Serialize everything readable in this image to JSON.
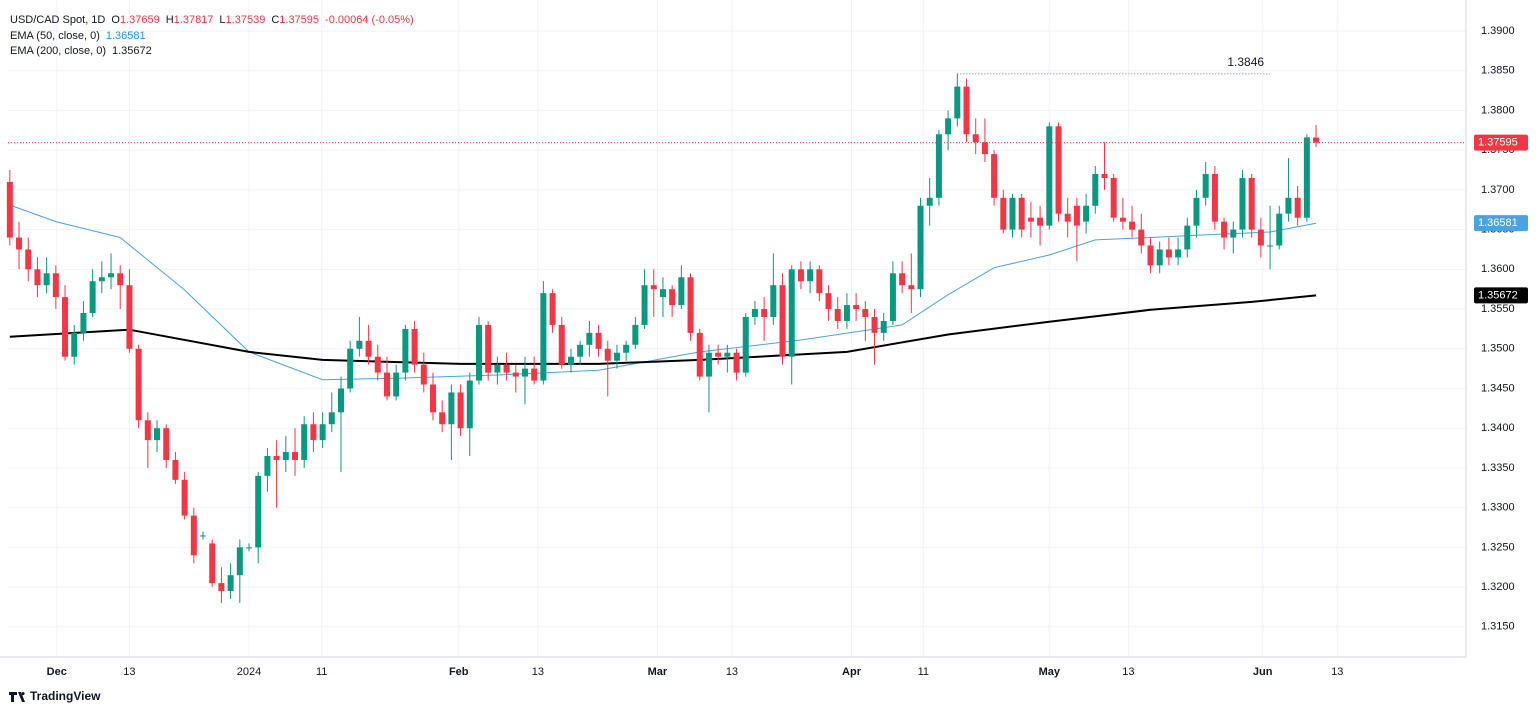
{
  "chart_data": {
    "type": "candlestick",
    "header": {
      "symbol": "USD/CAD Spot, 1D",
      "labels": [
        "O",
        "H",
        "L",
        "C"
      ],
      "change": "-0.00064 (-0.05%)"
    },
    "brand": "TradingView",
    "up_color": "#089981",
    "down_color": "#f23645",
    "grid": true,
    "xlim": [
      -0.2,
      158.3
    ],
    "ylim": [
      1.3112,
      1.3939
    ],
    "xticks": [
      {
        "value": 5.1,
        "label": "Dec"
      },
      {
        "value": 13,
        "label": "13"
      },
      {
        "value": 26,
        "label": "2024"
      },
      {
        "value": 33.9,
        "label": "11"
      },
      {
        "value": 48.8,
        "label": "Feb"
      },
      {
        "value": 57.4,
        "label": "13"
      },
      {
        "value": 70.4,
        "label": "Mar"
      },
      {
        "value": 78.5,
        "label": "13"
      },
      {
        "value": 91.5,
        "label": "Apr"
      },
      {
        "value": 99.3,
        "label": "11"
      },
      {
        "value": 113,
        "label": "May"
      },
      {
        "value": 121.6,
        "label": "13"
      },
      {
        "value": 136.2,
        "label": "Jun"
      },
      {
        "value": 144.3,
        "label": "13"
      }
    ],
    "yticks": [
      {
        "value": 1.315,
        "label": "1.3150"
      },
      {
        "value": 1.32,
        "label": "1.3200"
      },
      {
        "value": 1.325,
        "label": "1.3250"
      },
      {
        "value": 1.33,
        "label": "1.3300"
      },
      {
        "value": 1.335,
        "label": "1.3350"
      },
      {
        "value": 1.34,
        "label": "1.3400"
      },
      {
        "value": 1.345,
        "label": "1.3450"
      },
      {
        "value": 1.35,
        "label": "1.3500"
      },
      {
        "value": 1.355,
        "label": "1.3550"
      },
      {
        "value": 1.36,
        "label": "1.3600"
      },
      {
        "value": 1.365,
        "label": "1.3650"
      },
      {
        "value": 1.37,
        "label": "1.3700"
      },
      {
        "value": 1.375,
        "label": "1.3750"
      },
      {
        "value": 1.38,
        "label": "1.3800"
      },
      {
        "value": 1.385,
        "label": "1.3850"
      },
      {
        "value": 1.39,
        "label": "1.3900"
      }
    ],
    "ohlc": [
      [
        1.371,
        1.3725,
        1.363,
        1.364
      ],
      [
        1.364,
        1.366,
        1.36,
        1.3625
      ],
      [
        1.3625,
        1.364,
        1.3585,
        1.36
      ],
      [
        1.36,
        1.3615,
        1.3565,
        1.358
      ],
      [
        1.358,
        1.3615,
        1.357,
        1.3595
      ],
      [
        1.3595,
        1.3605,
        1.355,
        1.3565
      ],
      [
        1.3565,
        1.358,
        1.3485,
        1.349
      ],
      [
        1.349,
        1.353,
        1.348,
        1.352
      ],
      [
        1.352,
        1.356,
        1.351,
        1.3545
      ],
      [
        1.3545,
        1.36,
        1.354,
        1.3585
      ],
      [
        1.3585,
        1.361,
        1.357,
        1.359
      ],
      [
        1.359,
        1.362,
        1.3575,
        1.3595
      ],
      [
        1.3595,
        1.3605,
        1.355,
        1.358
      ],
      [
        1.358,
        1.36,
        1.3495,
        1.35
      ],
      [
        1.35,
        1.3505,
        1.34,
        1.341
      ],
      [
        1.341,
        1.342,
        1.335,
        1.3385
      ],
      [
        1.3385,
        1.341,
        1.337,
        1.34
      ],
      [
        1.34,
        1.3405,
        1.335,
        1.336
      ],
      [
        1.336,
        1.337,
        1.333,
        1.3335
      ],
      [
        1.3335,
        1.3345,
        1.3285,
        1.329
      ],
      [
        1.329,
        1.33,
        1.323,
        1.324
      ],
      [
        1.3265,
        1.327,
        1.326,
        1.3265
      ],
      [
        1.3255,
        1.326,
        1.32,
        1.3205
      ],
      [
        1.3205,
        1.3225,
        1.318,
        1.3195
      ],
      [
        1.3195,
        1.323,
        1.3185,
        1.3215
      ],
      [
        1.3215,
        1.326,
        1.318,
        1.325
      ],
      [
        1.325,
        1.3255,
        1.3245,
        1.325
      ],
      [
        1.325,
        1.3345,
        1.323,
        1.334
      ],
      [
        1.334,
        1.3375,
        1.332,
        1.3365
      ],
      [
        1.3365,
        1.3385,
        1.33,
        1.336
      ],
      [
        1.336,
        1.339,
        1.3345,
        1.337
      ],
      [
        1.337,
        1.34,
        1.334,
        1.336
      ],
      [
        1.336,
        1.3415,
        1.335,
        1.3405
      ],
      [
        1.3405,
        1.342,
        1.337,
        1.3385
      ],
      [
        1.3385,
        1.342,
        1.3375,
        1.3405
      ],
      [
        1.3405,
        1.3445,
        1.3395,
        1.342
      ],
      [
        1.342,
        1.3465,
        1.3345,
        1.345
      ],
      [
        1.345,
        1.351,
        1.3445,
        1.35
      ],
      [
        1.35,
        1.354,
        1.349,
        1.351
      ],
      [
        1.351,
        1.353,
        1.348,
        1.349
      ],
      [
        1.349,
        1.3505,
        1.346,
        1.347
      ],
      [
        1.347,
        1.349,
        1.3435,
        1.344
      ],
      [
        1.344,
        1.348,
        1.3435,
        1.347
      ],
      [
        1.347,
        1.353,
        1.346,
        1.3525
      ],
      [
        1.3525,
        1.3535,
        1.347,
        1.348
      ],
      [
        1.348,
        1.3495,
        1.3445,
        1.3455
      ],
      [
        1.3455,
        1.347,
        1.341,
        1.342
      ],
      [
        1.342,
        1.3435,
        1.3395,
        1.3405
      ],
      [
        1.3405,
        1.3455,
        1.336,
        1.3445
      ],
      [
        1.3445,
        1.3455,
        1.339,
        1.34
      ],
      [
        1.34,
        1.347,
        1.3365,
        1.346
      ],
      [
        1.346,
        1.354,
        1.3455,
        1.353
      ],
      [
        1.353,
        1.3535,
        1.346,
        1.347
      ],
      [
        1.347,
        1.349,
        1.3455,
        1.348
      ],
      [
        1.348,
        1.3495,
        1.346,
        1.347
      ],
      [
        1.347,
        1.348,
        1.3445,
        1.3465
      ],
      [
        1.3465,
        1.349,
        1.343,
        1.3475
      ],
      [
        1.3475,
        1.349,
        1.3455,
        1.346
      ],
      [
        1.346,
        1.3585,
        1.3455,
        1.357
      ],
      [
        1.357,
        1.3575,
        1.352,
        1.353
      ],
      [
        1.353,
        1.354,
        1.3475,
        1.348
      ],
      [
        1.348,
        1.35,
        1.347,
        1.349
      ],
      [
        1.349,
        1.351,
        1.348,
        1.3505
      ],
      [
        1.3505,
        1.3535,
        1.349,
        1.352
      ],
      [
        1.352,
        1.353,
        1.349,
        1.35
      ],
      [
        1.35,
        1.351,
        1.344,
        1.3485
      ],
      [
        1.3485,
        1.3505,
        1.3475,
        1.3495
      ],
      [
        1.3495,
        1.351,
        1.3485,
        1.3505
      ],
      [
        1.3505,
        1.354,
        1.35,
        1.353
      ],
      [
        1.353,
        1.36,
        1.3525,
        1.358
      ],
      [
        1.358,
        1.36,
        1.354,
        1.3575
      ],
      [
        1.3565,
        1.359,
        1.354,
        1.3575
      ],
      [
        1.3575,
        1.358,
        1.354,
        1.3555
      ],
      [
        1.3555,
        1.3605,
        1.355,
        1.359
      ],
      [
        1.359,
        1.3595,
        1.351,
        1.352
      ],
      [
        1.352,
        1.3525,
        1.346,
        1.3465
      ],
      [
        1.3465,
        1.3505,
        1.342,
        1.3495
      ],
      [
        1.3495,
        1.3505,
        1.348,
        1.349
      ],
      [
        1.349,
        1.3505,
        1.347,
        1.3495
      ],
      [
        1.3495,
        1.35,
        1.346,
        1.347
      ],
      [
        1.347,
        1.3545,
        1.3465,
        1.354
      ],
      [
        1.354,
        1.356,
        1.353,
        1.355
      ],
      [
        1.355,
        1.3565,
        1.351,
        1.354
      ],
      [
        1.354,
        1.362,
        1.353,
        1.358
      ],
      [
        1.358,
        1.3595,
        1.348,
        1.349
      ],
      [
        1.349,
        1.3605,
        1.3455,
        1.36
      ],
      [
        1.36,
        1.361,
        1.3575,
        1.3585
      ],
      [
        1.3585,
        1.361,
        1.357,
        1.36
      ],
      [
        1.36,
        1.3605,
        1.356,
        1.357
      ],
      [
        1.357,
        1.358,
        1.3535,
        1.355
      ],
      [
        1.355,
        1.3565,
        1.3525,
        1.3535
      ],
      [
        1.3535,
        1.357,
        1.3525,
        1.3555
      ],
      [
        1.3555,
        1.357,
        1.3535,
        1.355
      ],
      [
        1.355,
        1.356,
        1.351,
        1.354
      ],
      [
        1.354,
        1.355,
        1.348,
        1.352
      ],
      [
        1.352,
        1.3545,
        1.351,
        1.3535
      ],
      [
        1.3535,
        1.361,
        1.353,
        1.3595
      ],
      [
        1.3595,
        1.361,
        1.357,
        1.358
      ],
      [
        1.358,
        1.362,
        1.3545,
        1.3575
      ],
      [
        1.3575,
        1.369,
        1.3565,
        1.368
      ],
      [
        1.368,
        1.3715,
        1.3655,
        1.369
      ],
      [
        1.369,
        1.3775,
        1.368,
        1.377
      ],
      [
        1.377,
        1.38,
        1.375,
        1.379
      ],
      [
        1.379,
        1.3846,
        1.378,
        1.383
      ],
      [
        1.383,
        1.384,
        1.376,
        1.377
      ],
      [
        1.377,
        1.379,
        1.3745,
        1.376
      ],
      [
        1.376,
        1.379,
        1.3735,
        1.3745
      ],
      [
        1.3745,
        1.375,
        1.368,
        1.369
      ],
      [
        1.369,
        1.37,
        1.3645,
        1.365
      ],
      [
        1.365,
        1.3695,
        1.364,
        1.369
      ],
      [
        1.369,
        1.3695,
        1.364,
        1.365
      ],
      [
        1.3665,
        1.3685,
        1.364,
        1.366
      ],
      [
        1.3665,
        1.368,
        1.363,
        1.3655
      ],
      [
        1.3655,
        1.3785,
        1.365,
        1.378
      ],
      [
        1.378,
        1.3785,
        1.366,
        1.367
      ],
      [
        1.367,
        1.369,
        1.364,
        1.366
      ],
      [
        1.368,
        1.369,
        1.361,
        1.3655
      ],
      [
        1.366,
        1.3695,
        1.3645,
        1.368
      ],
      [
        1.368,
        1.373,
        1.367,
        1.372
      ],
      [
        1.372,
        1.376,
        1.37,
        1.3715
      ],
      [
        1.3715,
        1.372,
        1.366,
        1.3665
      ],
      [
        1.3665,
        1.369,
        1.365,
        1.366
      ],
      [
        1.366,
        1.368,
        1.364,
        1.365
      ],
      [
        1.365,
        1.367,
        1.362,
        1.363
      ],
      [
        1.363,
        1.364,
        1.3595,
        1.3605
      ],
      [
        1.3605,
        1.3635,
        1.3595,
        1.3625
      ],
      [
        1.3625,
        1.364,
        1.3605,
        1.3615
      ],
      [
        1.3615,
        1.364,
        1.3605,
        1.3625
      ],
      [
        1.3625,
        1.3665,
        1.3615,
        1.3655
      ],
      [
        1.3655,
        1.37,
        1.364,
        1.369
      ],
      [
        1.369,
        1.3735,
        1.368,
        1.372
      ],
      [
        1.372,
        1.373,
        1.365,
        1.366
      ],
      [
        1.366,
        1.3665,
        1.3625,
        1.364
      ],
      [
        1.364,
        1.366,
        1.362,
        1.365
      ],
      [
        1.365,
        1.3725,
        1.364,
        1.3715
      ],
      [
        1.3715,
        1.372,
        1.364,
        1.365
      ],
      [
        1.365,
        1.3665,
        1.3615,
        1.363
      ],
      [
        1.363,
        1.368,
        1.36,
        1.363
      ],
      [
        1.363,
        1.368,
        1.3625,
        1.367
      ],
      [
        1.367,
        1.374,
        1.366,
        1.369
      ],
      [
        1.369,
        1.3705,
        1.3655,
        1.3665
      ],
      [
        1.3665,
        1.377,
        1.366,
        1.3766
      ],
      [
        1.37659,
        1.37817,
        1.37539,
        1.37595
      ]
    ],
    "series": [
      {
        "name": "EMA (50, close, 0)",
        "color": "#4aa3df",
        "x": [
          0,
          5,
          12,
          19,
          26,
          34,
          42,
          53,
          64,
          75,
          86,
          97,
          102,
          107,
          113,
          118,
          124,
          129,
          137,
          142
        ],
        "values": [
          1.3681,
          1.366,
          1.364,
          1.3574,
          1.3496,
          1.3461,
          1.3463,
          1.3467,
          1.3473,
          1.3496,
          1.3511,
          1.353,
          1.3568,
          1.3602,
          1.3618,
          1.3637,
          1.364,
          1.3643,
          1.3647,
          1.36581
        ]
      },
      {
        "name": "EMA (200, close, 0)",
        "color": "#000000",
        "x": [
          0,
          13,
          26,
          34,
          49,
          64,
          75,
          91,
          102,
          113,
          124,
          135,
          142
        ],
        "values": [
          1.3515,
          1.3524,
          1.3496,
          1.3486,
          1.3481,
          1.3481,
          1.3486,
          1.3496,
          1.3518,
          1.3534,
          1.3549,
          1.3559,
          1.35672
        ]
      }
    ]
  }
}
